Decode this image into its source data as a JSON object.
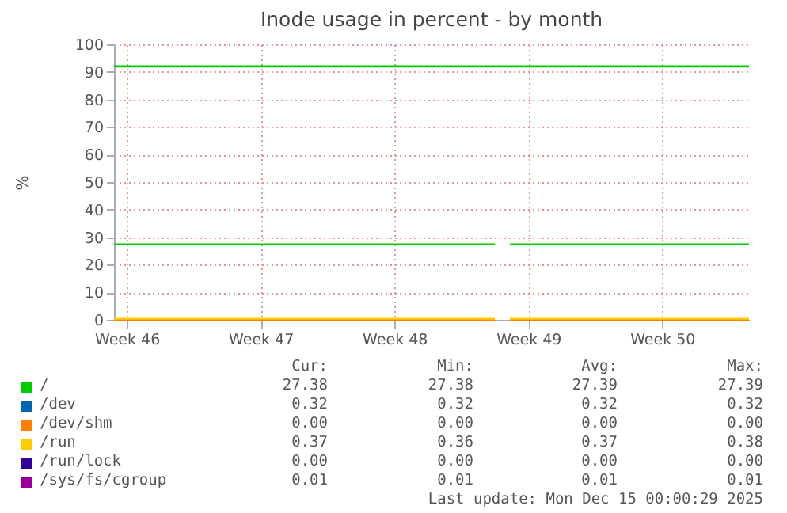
{
  "chart_data": {
    "type": "line",
    "title": "Inode usage in percent - by month",
    "ylabel": "%",
    "x": [
      "2025-11-09T08:00",
      "2025-11-29T06:00",
      "2025-11-29T16:00",
      "2025-11-30T01:00",
      "2025-12-12T13:00"
    ],
    "series": [
      {
        "name": "/",
        "color": "#00cc00",
        "values": [
          27.4,
          27.4,
          null,
          27.4,
          27.4
        ]
      },
      {
        "name": "/dev",
        "color": "#0066b3",
        "values": [
          null,
          null,
          null,
          null,
          null
        ]
      },
      {
        "name": "/dev/shm",
        "color": "#ff8000",
        "values": [
          0,
          0,
          null,
          0,
          0
        ]
      },
      {
        "name": "/run",
        "color": "#ffcc00",
        "values": [
          0.4,
          0.4,
          null,
          0.4,
          0.4
        ]
      },
      {
        "name": "/run/lock",
        "color": "#330099",
        "values": [
          null,
          null,
          null,
          null,
          null
        ]
      },
      {
        "name": "/sys/fs/cgroup",
        "color": "#990099",
        "values": [
          null,
          null,
          null,
          null,
          null
        ]
      }
    ],
    "ref_lines": [
      {
        "axis": "y",
        "value": 92,
        "color": "#00cc00"
      }
    ],
    "xlim": [
      "2025-11-09T08:00",
      "2025-12-12T13:00"
    ],
    "xticks": [
      {
        "value": "2025-11-10",
        "label": "Week 46"
      },
      {
        "value": "2025-11-17",
        "label": "Week 47"
      },
      {
        "value": "2025-11-24",
        "label": "Week 48"
      },
      {
        "value": "2025-12-01",
        "label": "Week 49"
      },
      {
        "value": "2025-12-08",
        "label": "Week 50"
      }
    ],
    "ylim": [
      0,
      100
    ],
    "yticks": [
      0,
      10,
      20,
      30,
      40,
      50,
      60,
      70,
      80,
      90,
      100
    ],
    "grid": true,
    "legend": "bottom",
    "marker": "none",
    "line_style": "solid",
    "annotations": [
      "Cur:",
      "Min:",
      "Avg:",
      "Max:",
      "27.38",
      "27.38",
      "27.39",
      "27.39",
      "0.32",
      "0.32",
      "0.32",
      "0.32",
      "0.00",
      "0.00",
      "0.00",
      "0.00",
      "0.37",
      "0.36",
      "0.37",
      "0.38",
      "0.00",
      "0.00",
      "0.00",
      "0.00",
      "0.01",
      "0.01",
      "0.01",
      "0.01",
      "Last update: Mon Dec 15 00:00:29 2025"
    ]
  }
}
